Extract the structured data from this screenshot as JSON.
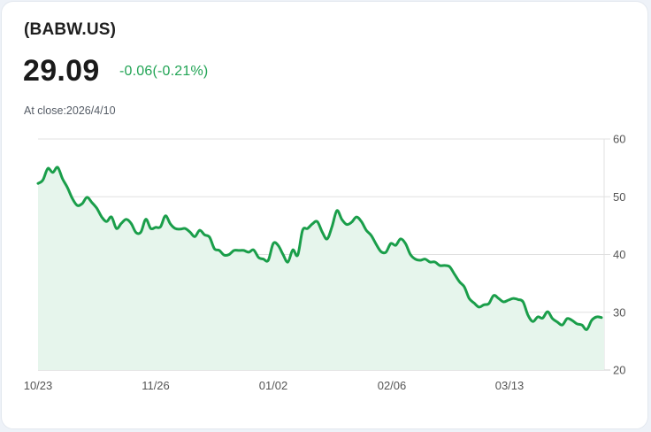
{
  "header": {
    "ticker": "(BABW.US)",
    "price": "29.09",
    "change": "-0.06(-0.21%)",
    "close_label": "At close:2026/4/10"
  },
  "colors": {
    "line": "#1a9e4a",
    "fill": "#e6f5ec",
    "change_text": "#22a455",
    "gridline": "#e0e0e0"
  },
  "chart_data": {
    "type": "area",
    "title": "(BABW.US)",
    "xlabel": "",
    "ylabel": "",
    "ylim": [
      20,
      60
    ],
    "yticks": [
      60,
      50,
      40,
      30,
      20
    ],
    "xtick_labels": [
      "10/23",
      "11/26",
      "01/02",
      "02/06",
      "03/13"
    ],
    "grid": true,
    "legend": "none",
    "y_axis_position": "right",
    "series": [
      {
        "name": "BABW.US close",
        "values": [
          52.3,
          52.9,
          54.9,
          54.2,
          55.1,
          53.1,
          51.6,
          49.7,
          48.5,
          48.8,
          49.9,
          49.0,
          48.0,
          46.5,
          45.7,
          46.5,
          44.5,
          45.4,
          46.1,
          45.4,
          43.8,
          43.9,
          46.1,
          44.5,
          44.7,
          44.8,
          46.7,
          45.3,
          44.5,
          44.4,
          44.5,
          43.9,
          43.1,
          44.2,
          43.4,
          43.0,
          41.0,
          40.7,
          39.9,
          40.0,
          40.7,
          40.7,
          40.7,
          40.4,
          40.8,
          39.5,
          39.2,
          39.0,
          41.9,
          41.6,
          40.0,
          38.7,
          40.8,
          39.9,
          44.2,
          44.5,
          45.3,
          45.7,
          43.9,
          42.7,
          44.8,
          47.6,
          46.1,
          45.2,
          45.6,
          46.5,
          45.7,
          44.2,
          43.3,
          41.8,
          40.5,
          40.4,
          41.9,
          41.6,
          42.7,
          41.9,
          40.0,
          39.2,
          39.0,
          39.2,
          38.7,
          38.7,
          38.1,
          38.1,
          37.9,
          36.6,
          35.3,
          34.4,
          32.4,
          31.6,
          30.9,
          31.3,
          31.5,
          32.9,
          32.4,
          31.8,
          32.1,
          32.4,
          32.2,
          31.8,
          29.5,
          28.4,
          29.2,
          29.0,
          30.1,
          28.9,
          28.3,
          27.8,
          28.9,
          28.6,
          28.0,
          27.8,
          27.0,
          28.6,
          29.2,
          29.09
        ]
      }
    ]
  }
}
